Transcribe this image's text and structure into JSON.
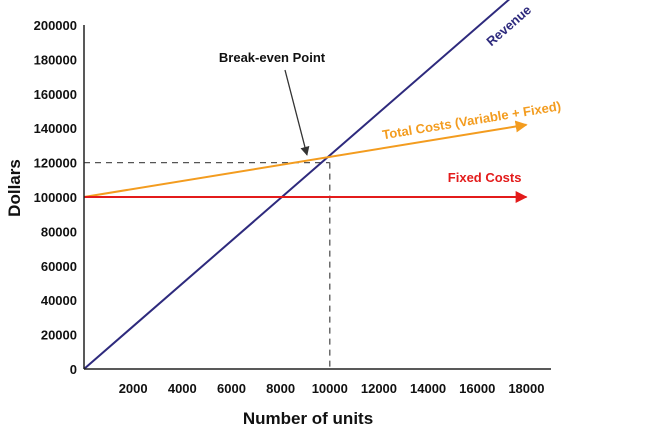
{
  "chart_data": {
    "type": "line",
    "xlabel": "Number of units",
    "ylabel": "Dollars",
    "xlim": [
      0,
      19000
    ],
    "ylim": [
      0,
      200000
    ],
    "x_ticks": [
      "2000",
      "4000",
      "6000",
      "8000",
      "10000",
      "12000",
      "14000",
      "16000",
      "18000"
    ],
    "y_ticks": [
      "0",
      "20000",
      "40000",
      "60000",
      "80000",
      "100000",
      "120000",
      "140000",
      "160000",
      "180000",
      "200000"
    ],
    "series": [
      {
        "name": "Revenue",
        "color": "#2e2a7d",
        "x": [
          0,
          19000
        ],
        "y": [
          0,
          236000
        ]
      },
      {
        "name": "Total Costs (Variable + Fixed)",
        "color": "#f39c1f",
        "x": [
          0,
          18000
        ],
        "y": [
          100000,
          142000
        ]
      },
      {
        "name": "Fixed Costs",
        "color": "#e31b1b",
        "x": [
          0,
          18000
        ],
        "y": [
          100000,
          100000
        ]
      }
    ],
    "break_even": {
      "label": "Break-even Point",
      "x": 10000,
      "y": 120000
    },
    "grid": false,
    "legend": "none"
  }
}
